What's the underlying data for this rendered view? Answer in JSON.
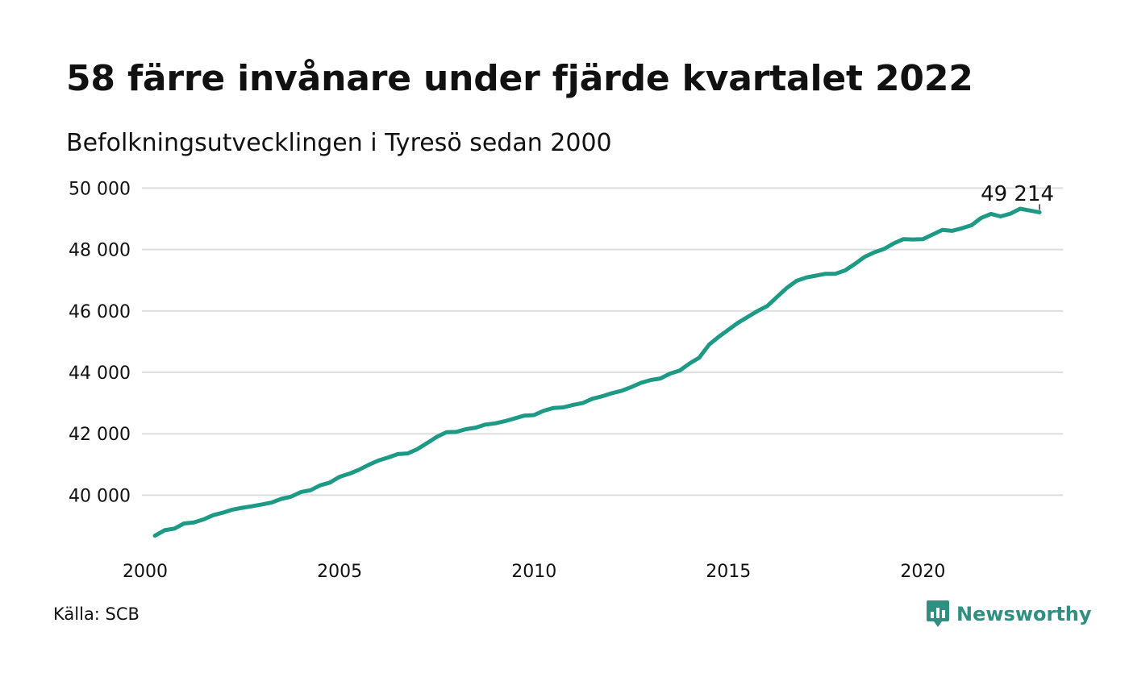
{
  "title": "58 färre invånare under fjärde kvartalet 2022",
  "subtitle": "Befolkningsutvecklingen i Tyresö sedan 2000",
  "source": "Källa: SCB",
  "brand": {
    "name": "Newsworthy",
    "color": "#2f8f80",
    "icon": "bar-chart-speech-bubble-icon"
  },
  "chart_data": {
    "type": "line",
    "title": "58 färre invånare under fjärde kvartalet 2022",
    "subtitle": "Befolkningsutvecklingen i Tyresö sedan 2000",
    "xlabel": "",
    "ylabel": "",
    "xlim": [
      2000,
      2023.6
    ],
    "ylim": [
      38200,
      50300
    ],
    "x_ticks": [
      2000,
      2005,
      2010,
      2015,
      2020
    ],
    "x_tick_labels": [
      "2000",
      "2005",
      "2010",
      "2015",
      "2020"
    ],
    "y_ticks": [
      40000,
      42000,
      44000,
      46000,
      48000,
      50000
    ],
    "y_tick_labels": [
      "40 000",
      "42 000",
      "44 000",
      "46 000",
      "48 000",
      "50 000"
    ],
    "grid": true,
    "line_color": "#1c9a85",
    "grid_color": "#dedede",
    "end_label": "49 214",
    "series": [
      {
        "x": [
          2000.25,
          2000.5,
          2000.75,
          2001.0,
          2001.25,
          2001.5,
          2001.75,
          2002.0,
          2002.25,
          2002.5,
          2002.75,
          2003.0,
          2003.25,
          2003.5,
          2003.75,
          2004.0,
          2004.25,
          2004.5,
          2004.75,
          2005.0,
          2005.25,
          2005.5,
          2005.75,
          2006.0,
          2006.25,
          2006.5,
          2006.75,
          2007.0,
          2007.25,
          2007.5,
          2007.75,
          2008.0,
          2008.25,
          2008.5,
          2008.75,
          2009.0,
          2009.25,
          2009.5,
          2009.75,
          2010.0,
          2010.25,
          2010.5,
          2010.75,
          2011.0,
          2011.25,
          2011.5,
          2011.75,
          2012.0,
          2012.25,
          2012.5,
          2012.75,
          2013.0,
          2013.25,
          2013.5,
          2013.75,
          2014.0,
          2014.25,
          2014.5,
          2014.75,
          2015.0,
          2015.25,
          2015.5,
          2015.75,
          2016.0,
          2016.25,
          2016.5,
          2016.75,
          2017.0,
          2017.25,
          2017.5,
          2017.75,
          2018.0,
          2018.25,
          2018.5,
          2018.75,
          2019.0,
          2019.25,
          2019.5,
          2019.75,
          2020.0,
          2020.25,
          2020.5,
          2020.75,
          2021.0,
          2021.25,
          2021.5,
          2021.75,
          2022.0,
          2022.25,
          2022.5,
          2022.75,
          2023.0
        ],
        "values": [
          38680,
          38860,
          38910,
          39080,
          39110,
          39210,
          39350,
          39430,
          39530,
          39590,
          39640,
          39700,
          39760,
          39880,
          39950,
          40100,
          40160,
          40320,
          40410,
          40600,
          40700,
          40830,
          40990,
          41130,
          41230,
          41340,
          41360,
          41500,
          41700,
          41900,
          42050,
          42060,
          42150,
          42200,
          42300,
          42340,
          42410,
          42500,
          42590,
          42610,
          42750,
          42840,
          42860,
          42940,
          43000,
          43140,
          43220,
          43320,
          43400,
          43520,
          43660,
          43750,
          43800,
          43960,
          44060,
          44290,
          44480,
          44900,
          45160,
          45390,
          45620,
          45810,
          46000,
          46160,
          46460,
          46750,
          46980,
          47090,
          47150,
          47210,
          47210,
          47320,
          47530,
          47760,
          47910,
          48020,
          48200,
          48340,
          48330,
          48340,
          48490,
          48640,
          48610,
          48690,
          48790,
          49030,
          49160,
          49080,
          49170,
          49330,
          49272,
          49214
        ]
      }
    ]
  }
}
